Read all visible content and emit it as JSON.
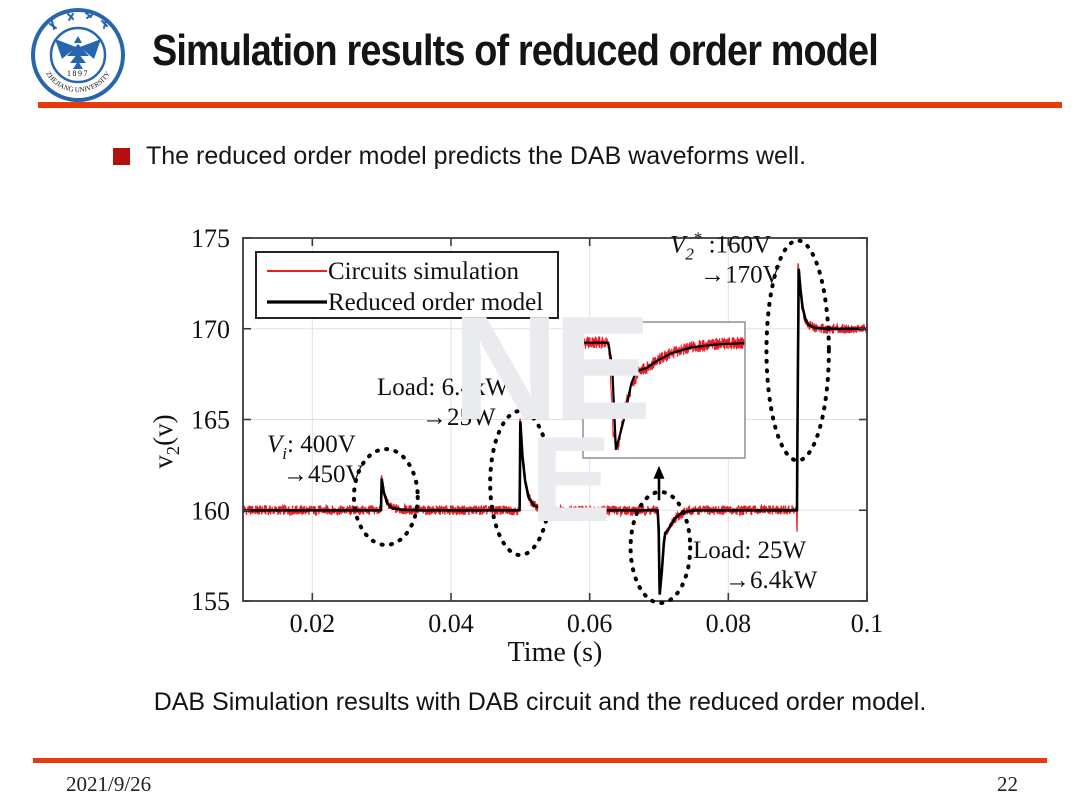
{
  "slide": {
    "logo": {
      "institution": "ZHEJIANG UNIVERSITY",
      "year": "1897"
    },
    "title": "Simulation results of reduced order model",
    "bullet": "The reduced order model predicts the DAB waveforms well.",
    "caption": "DAB Simulation results with DAB circuit and the reduced order model.",
    "watermark": {
      "line1": "NE",
      "line2": "E"
    },
    "footer": {
      "date": "2021/9/26",
      "page": "22"
    },
    "accent_color": "#e8380d",
    "bullet_color": "#b40f0f"
  },
  "chart_data": {
    "type": "line",
    "title": "",
    "xlabel": "Time (s)",
    "ylabel": "v2(v)",
    "ylabel_parts": [
      {
        "text": "v"
      },
      {
        "text": "2",
        "pos": "sub"
      },
      {
        "text": "(v)"
      }
    ],
    "xlim": [
      0.01,
      0.1
    ],
    "ylim": [
      155,
      175
    ],
    "xticks": [
      0.02,
      0.04,
      0.06,
      0.08,
      0.1
    ],
    "xtick_labels": [
      "0.02",
      "0.04",
      "0.06",
      "0.08",
      "0.1"
    ],
    "yticks": [
      155,
      160,
      165,
      170,
      175
    ],
    "ytick_labels": [
      "155",
      "160",
      "165",
      "170",
      "175"
    ],
    "grid": true,
    "legend": {
      "position": "top-left"
    },
    "series": [
      {
        "name": "Circuits simulation",
        "color": "#ed1c24",
        "width": 1.3,
        "noise": 0.27,
        "points": [
          [
            0.01,
            160
          ],
          [
            0.0299,
            160
          ],
          [
            0.02995,
            161.9
          ],
          [
            0.0303,
            161.0
          ],
          [
            0.0308,
            160.4
          ],
          [
            0.0315,
            160.1
          ],
          [
            0.033,
            160.03
          ],
          [
            0.035,
            160
          ],
          [
            0.0499,
            160
          ],
          [
            0.04995,
            165.0
          ],
          [
            0.0503,
            162.9
          ],
          [
            0.0507,
            161.5
          ],
          [
            0.0512,
            160.7
          ],
          [
            0.052,
            160.25
          ],
          [
            0.0535,
            160.05
          ],
          [
            0.055,
            160
          ],
          [
            0.0698,
            160
          ],
          [
            0.06985,
            159.2
          ],
          [
            0.07,
            155.9
          ],
          [
            0.0702,
            155.6
          ],
          [
            0.0705,
            157.4
          ],
          [
            0.0708,
            158.3
          ],
          [
            0.071,
            158.75
          ],
          [
            0.0713,
            158.9
          ],
          [
            0.0717,
            159.2
          ],
          [
            0.0723,
            159.55
          ],
          [
            0.0731,
            159.8
          ],
          [
            0.0741,
            159.95
          ],
          [
            0.0755,
            160
          ],
          [
            0.08985,
            160
          ],
          [
            0.0899,
            158.6
          ],
          [
            0.08995,
            160
          ],
          [
            0.09005,
            173.5
          ],
          [
            0.0903,
            172.4
          ],
          [
            0.0906,
            171.3
          ],
          [
            0.091,
            170.6
          ],
          [
            0.0915,
            170.25
          ],
          [
            0.0924,
            170.05
          ],
          [
            0.094,
            170
          ],
          [
            0.1,
            170
          ]
        ]
      },
      {
        "name": "Reduced order model",
        "color": "#000000",
        "width": 2.6,
        "noise": 0,
        "points": [
          [
            0.01,
            160
          ],
          [
            0.0299,
            160
          ],
          [
            0.03,
            161.75
          ],
          [
            0.0303,
            161.0
          ],
          [
            0.0308,
            160.4
          ],
          [
            0.0315,
            160.12
          ],
          [
            0.033,
            160.03
          ],
          [
            0.035,
            160
          ],
          [
            0.0499,
            160
          ],
          [
            0.05,
            164.9
          ],
          [
            0.0503,
            163.0
          ],
          [
            0.0507,
            161.6
          ],
          [
            0.0512,
            160.7
          ],
          [
            0.052,
            160.25
          ],
          [
            0.0535,
            160.05
          ],
          [
            0.055,
            160
          ],
          [
            0.0698,
            160
          ],
          [
            0.06995,
            159.0
          ],
          [
            0.0701,
            155.35
          ],
          [
            0.0704,
            156.6
          ],
          [
            0.0707,
            158.2
          ],
          [
            0.0709,
            158.75
          ],
          [
            0.0713,
            158.9
          ],
          [
            0.0717,
            159.2
          ],
          [
            0.0723,
            159.55
          ],
          [
            0.0731,
            159.8
          ],
          [
            0.0741,
            159.93
          ],
          [
            0.0755,
            160
          ],
          [
            0.0899,
            160
          ],
          [
            0.09,
            166
          ],
          [
            0.09015,
            173.3
          ],
          [
            0.0904,
            172.2
          ],
          [
            0.0907,
            171.2
          ],
          [
            0.0911,
            170.55
          ],
          [
            0.0916,
            170.2
          ],
          [
            0.0925,
            170.05
          ],
          [
            0.094,
            170
          ],
          [
            0.1,
            170
          ]
        ]
      }
    ],
    "annotations": [
      {
        "t": 0.01346,
        "v": 163.2,
        "lines": [
          {
            "indent": 0,
            "parts": [
              {
                "text": "V",
                "italic": true
              },
              {
                "text": "i",
                "italic": true,
                "pos": "sub"
              },
              {
                "text": ": 400V"
              }
            ]
          },
          {
            "indent": 16,
            "parts": [
              {
                "text": "→450V"
              }
            ]
          }
        ]
      },
      {
        "t": 0.02933,
        "v": 166.35,
        "lines": [
          {
            "indent": 0,
            "parts": [
              {
                "text": "Load: 6.4kW"
              }
            ]
          },
          {
            "indent": 45,
            "parts": [
              {
                "text": "→25W"
              }
            ]
          }
        ]
      },
      {
        "t": 0.0716,
        "v": 174.2,
        "lines": [
          {
            "indent": 0,
            "parts": [
              {
                "text": "V",
                "italic": true
              },
              {
                "text": "2",
                "italic": true,
                "pos": "sub"
              },
              {
                "text": "*",
                "pos": "sup"
              },
              {
                "text": " :160V"
              }
            ]
          },
          {
            "indent": 30,
            "parts": [
              {
                "text": "→170V"
              }
            ]
          }
        ]
      },
      {
        "t": 0.0749,
        "v": 157.37,
        "lines": [
          {
            "indent": 0,
            "parts": [
              {
                "text": "Load: 25W"
              }
            ]
          },
          {
            "indent": 32,
            "parts": [
              {
                "text": "→6.4kW"
              }
            ]
          }
        ]
      }
    ],
    "ellipses": [
      {
        "t": 0.0306,
        "v": 160.73,
        "rt": 0.0046,
        "rv": 2.64
      },
      {
        "t": 0.05,
        "v": 161.5,
        "rt": 0.00435,
        "rv": 3.97
      },
      {
        "t": 0.0702,
        "v": 157.95,
        "rt": 0.0043,
        "rv": 3.06
      },
      {
        "t": 0.09,
        "v": 168.8,
        "rt": 0.0045,
        "rv": 6.06
      }
    ],
    "inset": {
      "t": [
        0.0688,
        0.0752
      ],
      "v": [
        155.0,
        160.9
      ]
    },
    "arrow": {
      "x": 0.07,
      "from_v": 160.55,
      "to_v": 162.45
    }
  }
}
